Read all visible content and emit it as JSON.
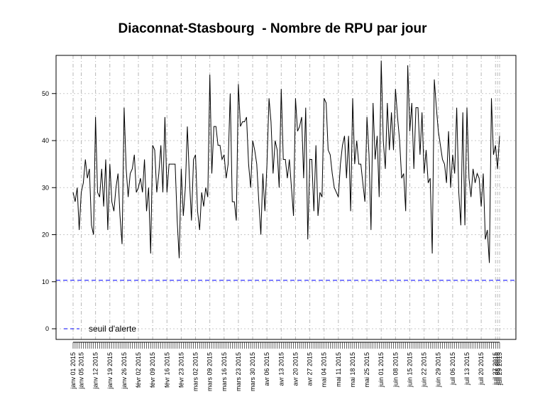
{
  "chart_data": {
    "type": "line",
    "title": "Diaconnat-Stasbourg  - Nombre de RPU par jour",
    "xlabel": "",
    "ylabel": "",
    "ylim": [
      0,
      56
    ],
    "yticks": [
      0,
      10,
      20,
      30,
      40,
      50
    ],
    "grid": true,
    "x_start": "2015-01-01",
    "x_end": "2015-07-29",
    "week_labels": [
      "janv 01 2015",
      "janv 05 2015",
      "janv 12 2015",
      "janv 19 2015",
      "janv 26 2015",
      "févr 02 2015",
      "févr 09 2015",
      "févr 16 2015",
      "févr 23 2015",
      "mars 02 2015",
      "mars 09 2015",
      "mars 16 2015",
      "mars 23 2015",
      "mars 30 2015",
      "avr 06 2015",
      "avr 13 2015",
      "avr 20 2015",
      "avr 27 2015",
      "mai 04 2015",
      "mai 11 2015",
      "mai 18 2015",
      "mai 25 2015",
      "juin 01 2015",
      "juin 08 2015",
      "juin 15 2015",
      "juin 22 2015",
      "juin 29 2015",
      "juil 06 2015",
      "juil 13 2015",
      "juil 20 2015",
      "juil 27 2015",
      "juil 28 2015",
      "juil 29 2015"
    ],
    "series": [
      {
        "name": "",
        "color": "#000000",
        "values": [
          29,
          27,
          30,
          21,
          29,
          31,
          36,
          32,
          34,
          22,
          20,
          45,
          29,
          28,
          34,
          26,
          36,
          21,
          35,
          27,
          25,
          30,
          33,
          24,
          18,
          47,
          34,
          28,
          33,
          34,
          37,
          29,
          30,
          32,
          29,
          36,
          25,
          30,
          16,
          39,
          38,
          29,
          33,
          39,
          29,
          45,
          29,
          35,
          35,
          35,
          35,
          23,
          15,
          34,
          24,
          30,
          43,
          32,
          23,
          36,
          37,
          25,
          21,
          29,
          26,
          30,
          28,
          54,
          33,
          43,
          43,
          39,
          39,
          36,
          37,
          32,
          35,
          50,
          27,
          27,
          23,
          52,
          43,
          44,
          44,
          45,
          35,
          30,
          40,
          38,
          35,
          27,
          20,
          33,
          25,
          35,
          49,
          44,
          33,
          40,
          38,
          30,
          51,
          36,
          36,
          32,
          36,
          30,
          24,
          49,
          42,
          43,
          45,
          32,
          47,
          19,
          36,
          36,
          25,
          39,
          24,
          29,
          28,
          49,
          48,
          38,
          37,
          33,
          30,
          29,
          28,
          35,
          39,
          41,
          32,
          41,
          25,
          49,
          35,
          40,
          35,
          35,
          31,
          27,
          45,
          37,
          21,
          48,
          36,
          41,
          28,
          57,
          40,
          34,
          48,
          38,
          46,
          38,
          51,
          45,
          40,
          32,
          33,
          25,
          56,
          42,
          48,
          34,
          47,
          47,
          37,
          46,
          33,
          38,
          31,
          32,
          16,
          53,
          47,
          42,
          39,
          36,
          35,
          31,
          42,
          30,
          37,
          33,
          47,
          29,
          22,
          46,
          22,
          47,
          32,
          28,
          34,
          31,
          33,
          32,
          26,
          33,
          19,
          21,
          14,
          49,
          37,
          39,
          34,
          41
        ]
      },
      {
        "name": "seuil d'alerte",
        "type": "hline",
        "color": "#0000ff",
        "value": 10.3
      }
    ],
    "legend": {
      "entries": [
        "seuil d'alerte"
      ],
      "placement": "bottom-left"
    }
  }
}
